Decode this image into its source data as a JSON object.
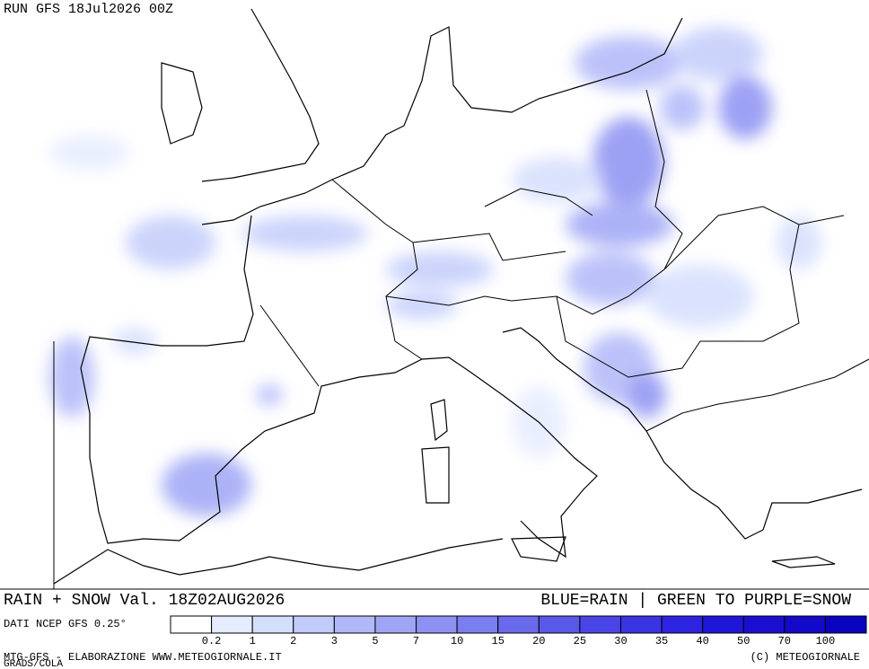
{
  "header": {
    "run": "RUN GFS 18Jul2026 00Z"
  },
  "footer": {
    "title": "RAIN + SNOW Val. 18Z02AUG2026",
    "note": "BLUE=RAIN | GREEN TO PURPLE=SNOW",
    "source": "DATI NCEP GFS 0.25°",
    "credit": "MTG-GFS - ELABORAZIONE WWW.METEOGIORNALE.IT",
    "software": "GRADS/COLA",
    "copyright": "(C) METEOGIORNALE"
  },
  "legend": {
    "colors": [
      "#ffffff",
      "#e6ecff",
      "#d4defd",
      "#c2ccfb",
      "#b0b8f8",
      "#9ea5f5",
      "#8c91f2",
      "#7b7eef",
      "#6a6aec",
      "#5a58e9",
      "#4a46e6",
      "#3b34e3",
      "#2c24e0",
      "#2016d8",
      "#1a0fd0",
      "#1309c8",
      "#0a04c0"
    ],
    "ticks": [
      0.2,
      1,
      2,
      3,
      5,
      7,
      10,
      15,
      20,
      25,
      30,
      35,
      40,
      50,
      70,
      100
    ]
  }
}
